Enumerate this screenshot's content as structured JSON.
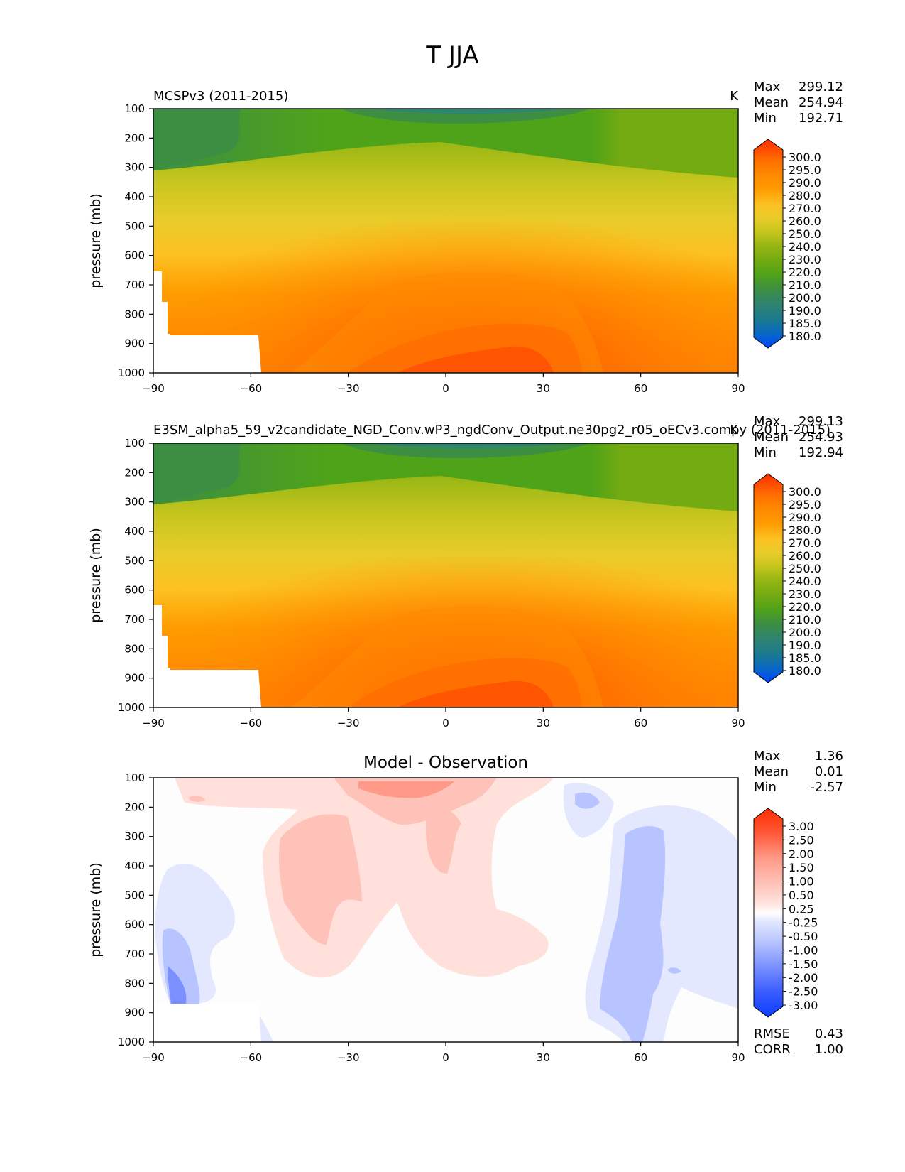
{
  "figure": {
    "title": "T JJA"
  },
  "chart_data": [
    {
      "type": "contour",
      "panel": "test",
      "title_left": "MCSPv3 (2011-2015)",
      "title_center": "",
      "units": "K",
      "ylabel": "pressure (mb)",
      "xlabel": "",
      "xlim": [
        -90,
        90
      ],
      "ylim": [
        1000,
        100
      ],
      "x_ticks": [
        "−90",
        "−60",
        "−30",
        "0",
        "30",
        "60",
        "90"
      ],
      "y_ticks": [
        "100",
        "200",
        "300",
        "400",
        "500",
        "600",
        "700",
        "800",
        "900",
        "1000"
      ],
      "stats": [
        {
          "label": "Max",
          "value": "299.12"
        },
        {
          "label": "Mean",
          "value": "254.94"
        },
        {
          "label": "Min",
          "value": "192.71"
        }
      ],
      "colorbar_levels": [
        "300.0",
        "295.0",
        "290.0",
        "280.0",
        "270.0",
        "260.0",
        "250.0",
        "240.0",
        "230.0",
        "220.0",
        "210.0",
        "200.0",
        "190.0",
        "185.0",
        "180.0"
      ],
      "colorbar_colors": [
        "#ff2d00",
        "#ff5400",
        "#ff6e00",
        "#ff8a00",
        "#ff9c00",
        "#fbb01b",
        "#fcc121",
        "#e8cc2a",
        "#c9c61f",
        "#b3be18",
        "#96b614",
        "#74aa12",
        "#4fa319",
        "#3c8e42",
        "#2f8470",
        "#1c7a8c",
        "#0a68c4",
        "#0044ff"
      ]
    },
    {
      "type": "contour",
      "panel": "reference",
      "title_left": "E3SM_alpha5_59_v2candidate_NGD_Conv.wP3_ngdConv_Output.ne30pg2_r05_oECv3.compy (2011-2015)",
      "units": "K",
      "ylabel": "pressure (mb)",
      "xlim": [
        -90,
        90
      ],
      "ylim": [
        1000,
        100
      ],
      "x_ticks": [
        "−90",
        "−60",
        "−30",
        "0",
        "30",
        "60",
        "90"
      ],
      "y_ticks": [
        "100",
        "200",
        "300",
        "400",
        "500",
        "600",
        "700",
        "800",
        "900",
        "1000"
      ],
      "stats": [
        {
          "label": "Max",
          "value": "299.13"
        },
        {
          "label": "Mean",
          "value": "254.93"
        },
        {
          "label": "Min",
          "value": "192.94"
        }
      ],
      "colorbar_levels": [
        "300.0",
        "295.0",
        "290.0",
        "280.0",
        "270.0",
        "260.0",
        "250.0",
        "240.0",
        "230.0",
        "220.0",
        "210.0",
        "200.0",
        "190.0",
        "185.0",
        "180.0"
      ]
    },
    {
      "type": "contour",
      "panel": "difference",
      "title_center": "Model - Observation",
      "ylabel": "pressure (mb)",
      "xlim": [
        -90,
        90
      ],
      "ylim": [
        1000,
        100
      ],
      "x_ticks": [
        "−90",
        "−60",
        "−30",
        "0",
        "30",
        "60",
        "90"
      ],
      "y_ticks": [
        "100",
        "200",
        "300",
        "400",
        "500",
        "600",
        "700",
        "800",
        "900",
        "1000"
      ],
      "stats": [
        {
          "label": "Max",
          "value": "1.36"
        },
        {
          "label": "Mean",
          "value": "0.01"
        },
        {
          "label": "Min",
          "value": "-2.57"
        }
      ],
      "bottom_stats": [
        {
          "label": "RMSE",
          "value": "0.43"
        },
        {
          "label": "CORR",
          "value": "1.00"
        }
      ],
      "colorbar_levels": [
        "3.00",
        "2.50",
        "2.00",
        "1.50",
        "1.00",
        "0.50",
        "0.25",
        "-0.25",
        "-0.50",
        "-1.00",
        "-1.50",
        "-2.00",
        "-2.50",
        "-3.00"
      ]
    }
  ]
}
